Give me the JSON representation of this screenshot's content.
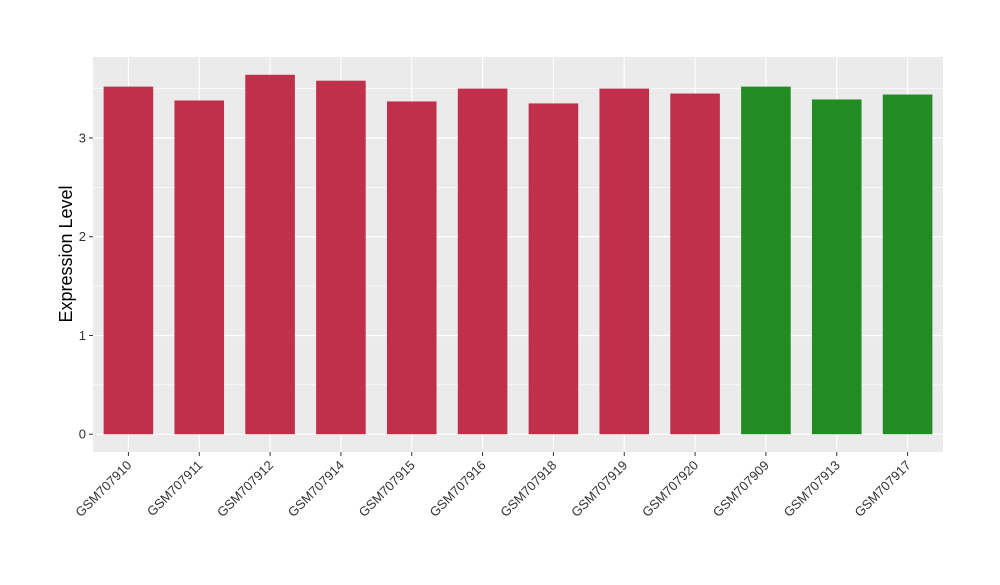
{
  "chart_data": {
    "type": "bar",
    "categories": [
      "GSM707910",
      "GSM707911",
      "GSM707912",
      "GSM707914",
      "GSM707915",
      "GSM707916",
      "GSM707918",
      "GSM707919",
      "GSM707920",
      "GSM707909",
      "GSM707913",
      "GSM707917"
    ],
    "values": [
      3.52,
      3.38,
      3.64,
      3.58,
      3.37,
      3.5,
      3.35,
      3.5,
      3.45,
      3.52,
      3.39,
      3.44
    ],
    "groups": [
      "red",
      "red",
      "red",
      "red",
      "red",
      "red",
      "red",
      "red",
      "red",
      "green",
      "green",
      "green"
    ],
    "group_colors": {
      "red": "#C0304B",
      "green": "#238B23"
    },
    "ylabel": "Expression Level",
    "xlabel": "",
    "title": "",
    "yticks": [
      0,
      1,
      2,
      3
    ],
    "ylim": [
      -0.18,
      3.82
    ],
    "grid": true,
    "panel_background": "#EBEBEB",
    "grid_color": "#FFFFFF"
  }
}
